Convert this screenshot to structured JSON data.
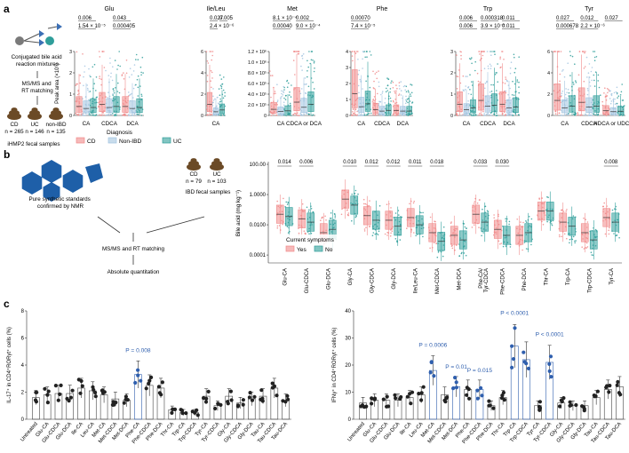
{
  "colors": {
    "cd": "#f08a8a",
    "non_ibd": "#a3c4e0",
    "uc": "#2f9e9a",
    "yes": "#f08a8a",
    "no": "#2f9e9a",
    "bar_dark": "#222222",
    "bar_blue": "#2f5fae",
    "panel_a_icon": "#2f9e9a",
    "hex_blue": "#1e5fa8",
    "feces": "#6b4a26"
  },
  "panel_a": {
    "label": "a",
    "schematic": {
      "top_caption": "Conjugated bile acid\nreaction mixtures",
      "step1": "MS/MS and\nRT matching",
      "groups": [
        {
          "name": "CD",
          "n": "n = 265"
        },
        {
          "name": "UC",
          "n": "n = 146"
        },
        {
          "name": "non-IBD",
          "n": "n = 135"
        }
      ],
      "bottom_caption": "iHMP2 fecal samples"
    },
    "legend": {
      "title": "Diagnosis",
      "items": [
        {
          "name": "CD",
          "color_key": "cd"
        },
        {
          "name": "Non-IBD",
          "color_key": "non_ibd"
        },
        {
          "name": "UC",
          "color_key": "uc"
        }
      ]
    },
    "ylabel": "Peak area (×10⁶)"
  },
  "panel_b": {
    "label": "b",
    "left_caption": "Pure synthetic standards\nconfirmed by NMR",
    "groups": [
      {
        "name": "CD",
        "n": "n = 79"
      },
      {
        "name": "UC",
        "n": "n = 103"
      }
    ],
    "right_caption": "IBD fecal samples",
    "step1": "MS/MS and RT matching",
    "step2": "Absolute quantitation",
    "legend_title": "Current symptoms",
    "legend_items": [
      {
        "name": "Yes",
        "color_key": "yes"
      },
      {
        "name": "No",
        "color_key": "no"
      }
    ]
  },
  "panel_c": {
    "label": "c"
  },
  "chart_data": [
    {
      "id": "a-glu",
      "type": "box",
      "title": "Glu",
      "ylabel": "Peak area (×10⁶)",
      "yticks": [
        "0",
        "1",
        "2",
        "3"
      ],
      "ylim": [
        0,
        3.2
      ],
      "categories": [
        "CA",
        "CDCA",
        "DCA"
      ],
      "series": [
        "CD",
        "Non-IBD",
        "UC"
      ],
      "medians": [
        [
          0.45,
          0.35,
          0.4
        ],
        [
          0.55,
          0.4,
          0.45
        ],
        [
          0.45,
          0.35,
          0.4
        ]
      ],
      "annotations": [
        "0.006",
        "0.043",
        "1.54 × 10⁻⁵",
        "0.000405"
      ]
    },
    {
      "id": "a-ile",
      "type": "box",
      "title": "Ile/Leu",
      "yticks": [
        "0",
        "2",
        "4",
        "6"
      ],
      "ylim": [
        0,
        7
      ],
      "categories": [
        "CA"
      ],
      "series": [
        "CD",
        "Non-IBD",
        "UC"
      ],
      "medians": [
        [
          1.2,
          0.4,
          0.6
        ]
      ],
      "annotations": [
        "0.027",
        "0.005",
        "2.4 × 10⁻⁶"
      ]
    },
    {
      "id": "a-met",
      "type": "box",
      "title": "Met",
      "yticks": [
        "0",
        "2.0 × 10⁵",
        "4.0 × 10⁵",
        "6.0 × 10⁵",
        "8.0 × 10⁵",
        "1.0 × 10⁶",
        "1.2 × 10⁶"
      ],
      "ylim": [
        0,
        1250000
      ],
      "categories": [
        "CA",
        "CDCA or DCA"
      ],
      "series": [
        "CD",
        "Non-IBD",
        "UC"
      ],
      "medians": [
        [
          120000,
          80000,
          90000
        ],
        [
          260000,
          160000,
          220000
        ]
      ],
      "annotations": [
        "8.1 × 10⁻⁴",
        "0.002",
        "0.00040",
        "9.0 × 10⁻⁴"
      ]
    },
    {
      "id": "a-phe",
      "type": "box",
      "title": "Phe",
      "yticks": [
        "0",
        "1",
        "2",
        "3",
        "4"
      ],
      "ylim": [
        0,
        4.4
      ],
      "categories": [
        "CA",
        "CDCA",
        "DCA"
      ],
      "series": [
        "CD",
        "Non-IBD",
        "UC"
      ],
      "medians": [
        [
          1.5,
          0.6,
          0.8
        ],
        [
          0.4,
          0.3,
          0.35
        ],
        [
          0.35,
          0.3,
          0.3
        ]
      ],
      "annotations": [
        "0.00070",
        "7.4 × 10⁻⁵"
      ]
    },
    {
      "id": "a-trp",
      "type": "box",
      "title": "Trp",
      "yticks": [
        "0",
        "1",
        "2",
        "3"
      ],
      "ylim": [
        0,
        3.4
      ],
      "categories": [
        "CA",
        "CDCA",
        "DCA"
      ],
      "series": [
        "CD",
        "Non-IBD",
        "UC"
      ],
      "medians": [
        [
          0.6,
          0.3,
          0.4
        ],
        [
          0.8,
          0.5,
          0.55
        ],
        [
          0.6,
          0.4,
          0.45
        ]
      ],
      "annotations": [
        "0.006",
        "0.000318",
        "0.011",
        "0.006",
        "3.9 × 10⁻⁵",
        "0.011"
      ]
    },
    {
      "id": "a-tyr",
      "type": "box",
      "title": "Tyr",
      "yticks": [
        "0",
        "2",
        "4",
        "6"
      ],
      "ylim": [
        0,
        6.8
      ],
      "categories": [
        "CA",
        "CDCA",
        "HDCA or UDCA"
      ],
      "series": [
        "CD",
        "Non-IBD",
        "UC"
      ],
      "medians": [
        [
          1.6,
          0.8,
          1.0
        ],
        [
          1.4,
          0.9,
          1.0
        ],
        [
          0.5,
          0.4,
          0.45
        ]
      ],
      "annotations": [
        "0.027",
        "0.012",
        "0.027",
        "0.000678",
        "2.2 × 10⁻⁶"
      ]
    },
    {
      "id": "b-main",
      "type": "box",
      "log": true,
      "ylabel": "Bile acid (mg kg⁻¹)",
      "yticks": [
        "0.0001",
        "0.0100",
        "1.0000",
        "100.00"
      ],
      "ylim": [
        3e-05,
        150
      ],
      "categories": [
        "Glu-CA",
        "Glu-CDCA",
        "Glu-DCA",
        "Gly-CA",
        "Gly-CDCA",
        "Gly-DCA",
        "Ile/Leu-CA",
        "Met-CDCA",
        "Met-DCA",
        "Phe-CA/\nTyr-CDCA",
        "Phe-CDCA",
        "Phe-DCA",
        "Thr-CA",
        "Trp-CA",
        "Trp-CDCA",
        "Tyr-CA"
      ],
      "series": [
        "Yes",
        "No"
      ],
      "medians": [
        [
          0.05,
          0.035
        ],
        [
          0.025,
          0.015
        ],
        [
          0.003,
          0.005
        ],
        [
          0.5,
          0.2
        ],
        [
          0.04,
          0.02
        ],
        [
          0.02,
          0.008
        ],
        [
          0.03,
          0.01
        ],
        [
          0.003,
          0.0008
        ],
        [
          0.002,
          0.001
        ],
        [
          0.05,
          0.015
        ],
        [
          0.005,
          0.002
        ],
        [
          0.002,
          0.003
        ],
        [
          0.08,
          0.08
        ],
        [
          0.015,
          0.008
        ],
        [
          0.003,
          0.001
        ],
        [
          0.03,
          0.015
        ]
      ],
      "pvalues": [
        "0.014",
        "0.006",
        "",
        "0.010",
        "0.012",
        "0.012",
        "0.011",
        "0.018",
        "",
        "0.033",
        "0.030",
        "",
        "",
        "",
        "",
        "0.008"
      ]
    },
    {
      "id": "c-il17",
      "type": "bar",
      "ylabel": "IL-17⁺ in CD4⁺RORγt⁺ cells (%)",
      "yticks": [
        "0",
        "2",
        "4",
        "6",
        "8"
      ],
      "ylim": [
        0,
        8
      ],
      "categories": [
        "Untreated",
        "Glu-CA",
        "Glu-CDCA",
        "Glu-DCA",
        "Ile-CA",
        "Leu-CA",
        "Met-CA",
        "Met-CDCA",
        "Met-DCA",
        "Phe-CA",
        "Phe-CDCA",
        "Phe-DCA",
        "Thr-CA",
        "Trp-CA",
        "Trp-CDCA",
        "Tyr-CA",
        "Tyr-CDCA",
        "Gly-CA",
        "Gly-CDCA",
        "Gly-DCA",
        "Tau-CA",
        "Tau-CDCA",
        "Tau-DCA"
      ],
      "values": [
        1.6,
        1.8,
        1.9,
        1.9,
        2.3,
        2.1,
        1.8,
        1.5,
        1.4,
        3.3,
        2.5,
        2.3,
        0.7,
        0.5,
        0.5,
        1.7,
        1.0,
        1.7,
        1.2,
        1.5,
        1.7,
        2.3,
        1.4
      ],
      "highlight": [
        9
      ],
      "annotations": [
        {
          "category": "Phe-CA",
          "text": "P = 0.008"
        }
      ]
    },
    {
      "id": "c-ifn",
      "type": "bar",
      "ylabel": "IFNγ⁺ in CD4⁺RORγt⁺ cells (%)",
      "yticks": [
        "0",
        "10",
        "20",
        "30",
        "40"
      ],
      "ylim": [
        0,
        40
      ],
      "categories": [
        "Untreated",
        "Glu-CA",
        "Glu-CDCA",
        "Glu-DCA",
        "Ile-CA",
        "Leu-CA",
        "Met-CA",
        "Met-CDCA",
        "Met-DCA",
        "Phe-CA",
        "Phe-CDCA",
        "Phe-DCA",
        "Thr-CA",
        "Trp-CA",
        "Trp-CDCA",
        "Tyr-CA",
        "Tyr-CDCA",
        "Gly-CA",
        "Gly-CDCA",
        "Gly-DCA",
        "Tau-CA",
        "Tau-CDCA",
        "Tau-DCA"
      ],
      "values": [
        6,
        7,
        7,
        7,
        8,
        9,
        18,
        9,
        12,
        11,
        11,
        5,
        8,
        27,
        22,
        5,
        21,
        6,
        5,
        5,
        8,
        11,
        12
      ],
      "highlight": [
        6,
        8,
        10,
        13,
        14,
        16
      ],
      "annotations": [
        {
          "category": "Met-CA",
          "text": "P = 0.0006"
        },
        {
          "category": "Met-DCA",
          "text": "P = 0.01"
        },
        {
          "category": "Phe-CDCA",
          "text": "P = 0.015"
        },
        {
          "category": "Trp-CA",
          "text": "P < 0.0001"
        },
        {
          "category": "Tyr-CDCA",
          "text": "P < 0.0001"
        }
      ]
    }
  ]
}
